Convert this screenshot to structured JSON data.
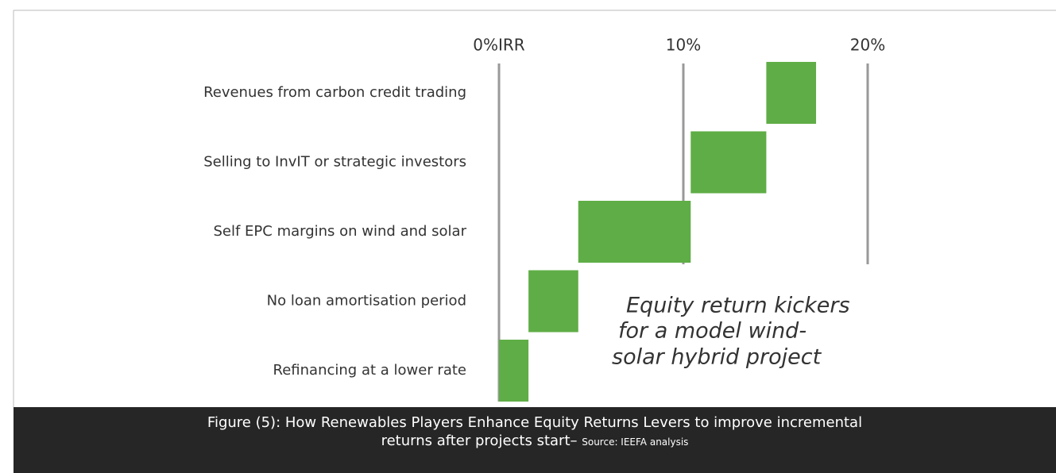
{
  "chart_data": {
    "type": "waterfall",
    "categories": [
      "Refinancing at a lower rate",
      "No loan amortisation period",
      "Self EPC margins on wind and solar",
      "Selling to InvIT or strategic investors",
      "Revenues from carbon credit trading"
    ],
    "values": [
      1.6,
      2.7,
      6.1,
      4.1,
      2.7
    ],
    "color": "#5fad46",
    "xlim": [
      0,
      20
    ],
    "xticks": [
      {
        "value": 0,
        "label": "0%IRR"
      },
      {
        "value": 10,
        "label": "10%"
      },
      {
        "value": 20,
        "label": "20%"
      }
    ],
    "annotation": [
      "Equity return kickers",
      "for a model wind-",
      "solar hybrid project"
    ],
    "caption": [
      "Figure (5):  How Renewables Players Enhance Equity Returns Levers to improve incremental",
      "returns after projects start–"
    ],
    "source": "Source:  IEEFA analysis"
  }
}
